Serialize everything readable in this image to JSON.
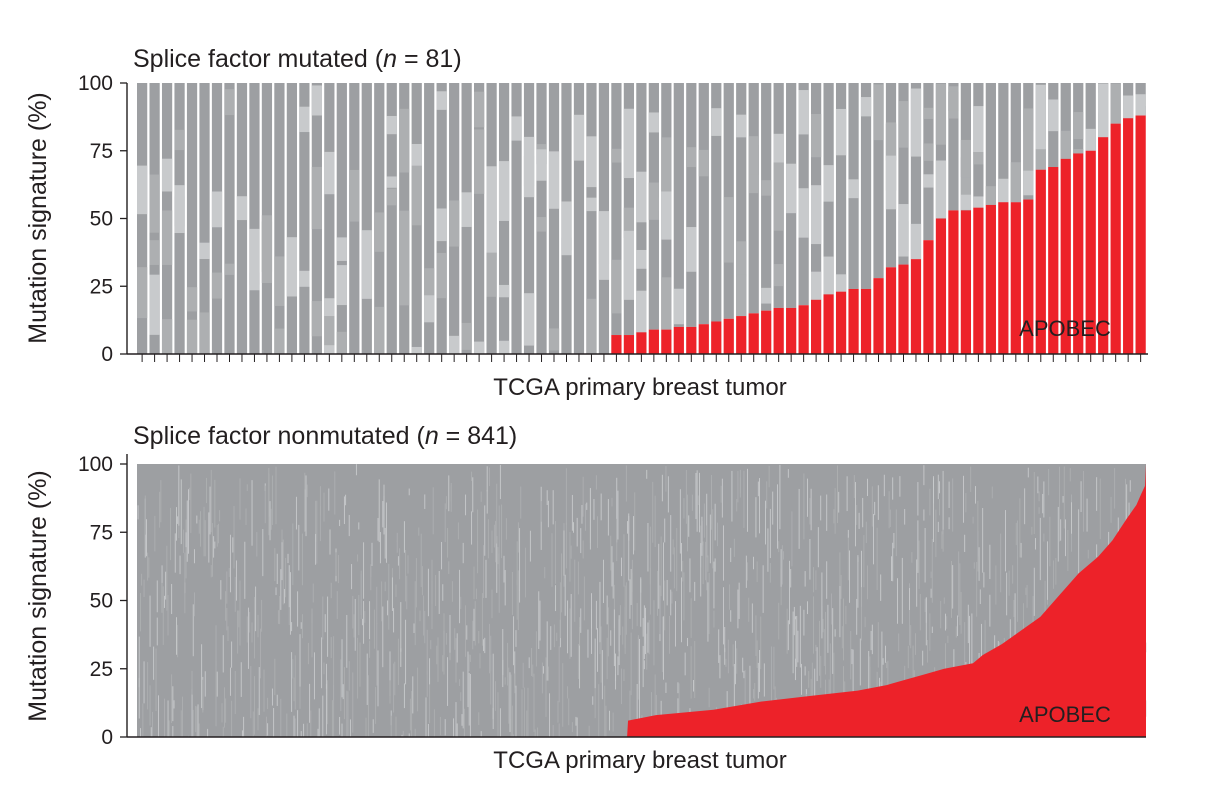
{
  "colors": {
    "apobec": "#ed2229",
    "other_dark": "#9d9fa2",
    "other_mid": "#adafb1",
    "other_light": "#c8cacc",
    "axis": "#231f20"
  },
  "chart_data": [
    {
      "type": "bar",
      "stacked": true,
      "title_main": "Splice factor mutated (",
      "title_n": "n",
      "title_rest": " = 81)",
      "xlabel": "TCGA primary breast tumor",
      "ylabel": "Mutation signature (%)",
      "ylim": [
        0,
        100
      ],
      "yticks": [
        "0",
        "25",
        "50",
        "75",
        "100"
      ],
      "n_tumors": 81,
      "series_label": "APOBEC",
      "apobec_values": [
        0,
        0,
        0,
        0,
        0,
        0,
        0,
        0,
        0,
        0,
        0,
        0,
        0,
        0,
        0,
        0,
        0,
        0,
        0,
        0,
        0,
        0,
        0,
        0,
        0,
        0,
        0,
        0,
        0,
        0,
        0,
        0,
        0,
        0,
        0,
        0,
        0,
        0,
        7,
        7,
        8,
        9,
        9,
        10,
        10,
        11,
        12,
        13,
        14,
        15,
        16,
        17,
        17,
        18,
        20,
        22,
        23,
        24,
        24,
        28,
        32,
        33,
        35,
        42,
        50,
        53,
        53,
        54,
        55,
        56,
        56,
        57,
        68,
        69,
        72,
        74,
        75,
        80,
        85,
        87,
        88
      ],
      "grid": false,
      "legend": "none"
    },
    {
      "type": "bar",
      "stacked": true,
      "title_main": "Splice factor nonmutated (",
      "title_n": "n",
      "title_rest": " = 841)",
      "xlabel": "TCGA primary breast tumor",
      "ylabel": "Mutation signature (%)",
      "ylim": [
        0,
        100
      ],
      "yticks": [
        "0",
        "25",
        "50",
        "75",
        "100"
      ],
      "n_tumors": 841,
      "series_label": "APOBEC",
      "apobec_curve": [
        [
          0,
          0
        ],
        [
          510,
          0
        ],
        [
          511,
          6
        ],
        [
          540,
          8
        ],
        [
          600,
          10
        ],
        [
          650,
          13
        ],
        [
          700,
          15
        ],
        [
          750,
          17
        ],
        [
          780,
          19
        ],
        [
          800,
          21
        ],
        [
          820,
          23
        ],
        [
          840,
          25
        ],
        [
          870,
          27
        ],
        [
          880,
          30
        ],
        [
          900,
          34
        ],
        [
          920,
          39
        ],
        [
          940,
          44
        ],
        [
          960,
          52
        ],
        [
          980,
          60
        ],
        [
          1000,
          66
        ],
        [
          1015,
          72
        ],
        [
          1030,
          80
        ],
        [
          1040,
          85
        ],
        [
          1045,
          89
        ],
        [
          1049,
          92
        ],
        [
          1050,
          100
        ]
      ],
      "apobec_curve_note_x_scale": "x in tumors rescaled 0-1050 across 841 tumors",
      "grid": false,
      "legend": "none"
    }
  ]
}
